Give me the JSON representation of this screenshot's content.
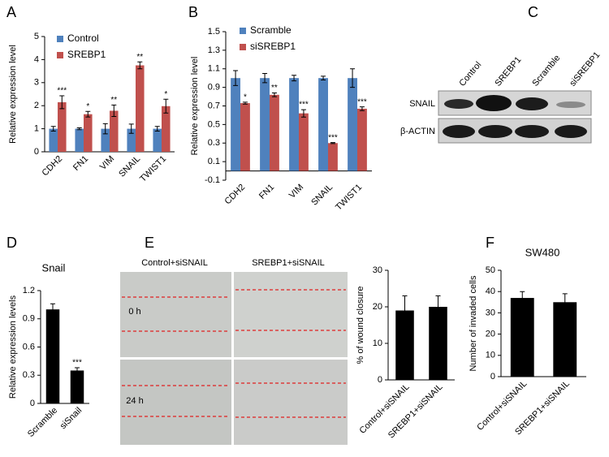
{
  "panel_labels": [
    "A",
    "B",
    "C",
    "D",
    "E",
    "F"
  ],
  "blot": {
    "lanes": [
      "Control",
      "SREBP1",
      "Scramble",
      "siSREBP1"
    ],
    "rows": [
      "SNAIL",
      "β-ACTIN"
    ]
  },
  "wound": {
    "columns": [
      "Control+siSNAIL",
      "SREBP1+siSNAIL"
    ],
    "rows": [
      "0 h",
      "24 h"
    ]
  },
  "chart_data": [
    {
      "type": "bar",
      "y_label": "Relative expression level",
      "categories": [
        "CDH2",
        "FN1",
        "VIM",
        "SNAIL",
        "TWIST1"
      ],
      "series": [
        {
          "name": "Control",
          "color": "#4f81bd",
          "values": [
            1,
            1,
            1,
            1,
            1
          ],
          "errors": [
            0.1,
            0.04,
            0.22,
            0.2,
            0.1
          ]
        },
        {
          "name": "SREBP1",
          "color": "#c0504d",
          "values": [
            2.15,
            1.63,
            1.78,
            3.75,
            1.98
          ],
          "errors": [
            0.28,
            0.12,
            0.25,
            0.15,
            0.3
          ],
          "significance": [
            "***",
            "*",
            "**",
            "**",
            "*"
          ]
        }
      ],
      "ylim": [
        0,
        5
      ],
      "yticks": [
        0,
        1,
        2,
        3,
        4,
        5
      ],
      "legend": "upper left"
    },
    {
      "type": "bar",
      "y_label": "Relative expression level",
      "categories": [
        "CDH2",
        "FN1",
        "VIM",
        "SNAIL",
        "TWIST1"
      ],
      "series": [
        {
          "name": "Scramble",
          "color": "#4f81bd",
          "values": [
            1,
            1,
            1,
            1,
            1
          ],
          "errors": [
            0.08,
            0.05,
            0.03,
            0.02,
            0.1
          ]
        },
        {
          "name": "siSREBP1",
          "color": "#c0504d",
          "values": [
            0.73,
            0.82,
            0.62,
            0.3,
            0.67
          ],
          "errors": [
            0.01,
            0.02,
            0.04,
            0.005,
            0.02
          ],
          "significance": [
            "*",
            "**",
            "***",
            "***",
            "***"
          ]
        }
      ],
      "ylim": [
        -0.1,
        1.5
      ],
      "yticks": [
        -0.1,
        0.1,
        0.3,
        0.5,
        0.7,
        0.9,
        1.1,
        1.3,
        1.5
      ],
      "legend": "upper left"
    },
    {
      "type": "bar",
      "title": "Snail",
      "y_label": "Relative expression levels",
      "categories": [
        "Scramble",
        "siSnail"
      ],
      "values": [
        1,
        0.35
      ],
      "errors": [
        0.06,
        0.03
      ],
      "significance": [
        null,
        "***"
      ],
      "color": "#000000",
      "ylim": [
        0,
        1.2
      ],
      "yticks": [
        0,
        0.3,
        0.6,
        0.9,
        1.2
      ]
    },
    {
      "type": "bar",
      "y_label": "% of wound closure",
      "categories": [
        "Control+siSNAIL",
        "SREBP1+siSNAIL"
      ],
      "values": [
        19,
        20
      ],
      "errors": [
        4,
        3
      ],
      "color": "#000000",
      "ylim": [
        0,
        30
      ],
      "yticks": [
        0,
        10,
        20,
        30
      ]
    },
    {
      "type": "bar",
      "title": "SW480",
      "y_label": "Number of invaded cells",
      "categories": [
        "Control+siSNAIL",
        "SREBP1+siSNAIL"
      ],
      "values": [
        37,
        35
      ],
      "errors": [
        3,
        4
      ],
      "color": "#000000",
      "ylim": [
        0,
        50
      ],
      "yticks": [
        0,
        10,
        20,
        30,
        40,
        50
      ]
    }
  ]
}
